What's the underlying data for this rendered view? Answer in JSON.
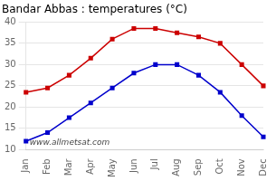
{
  "chart_data": {
    "type": "line",
    "title": "Bandar Abbas : temperatures (°C)",
    "categories": [
      "Jan",
      "Feb",
      "Mar",
      "Apr",
      "May",
      "Jun",
      "Jul",
      "Aug",
      "Sep",
      "Oct",
      "Nov",
      "Dec"
    ],
    "series": [
      {
        "color": "#cc0000",
        "values": [
          23.5,
          24.5,
          27.5,
          31.5,
          36.0,
          38.5,
          38.5,
          37.5,
          36.5,
          35.0,
          30.0,
          25.0
        ]
      },
      {
        "color": "#0000cc",
        "values": [
          12.0,
          14.0,
          17.5,
          21.0,
          24.5,
          28.0,
          30.0,
          30.0,
          27.5,
          23.5,
          18.0,
          13.0
        ]
      }
    ],
    "ylim": [
      10,
      40
    ],
    "yticks": [
      10,
      15,
      20,
      25,
      30,
      35,
      40
    ],
    "grid": "y",
    "marker": "square",
    "line_style": "solid",
    "annotations": [
      "www.allmetsat.com"
    ]
  }
}
